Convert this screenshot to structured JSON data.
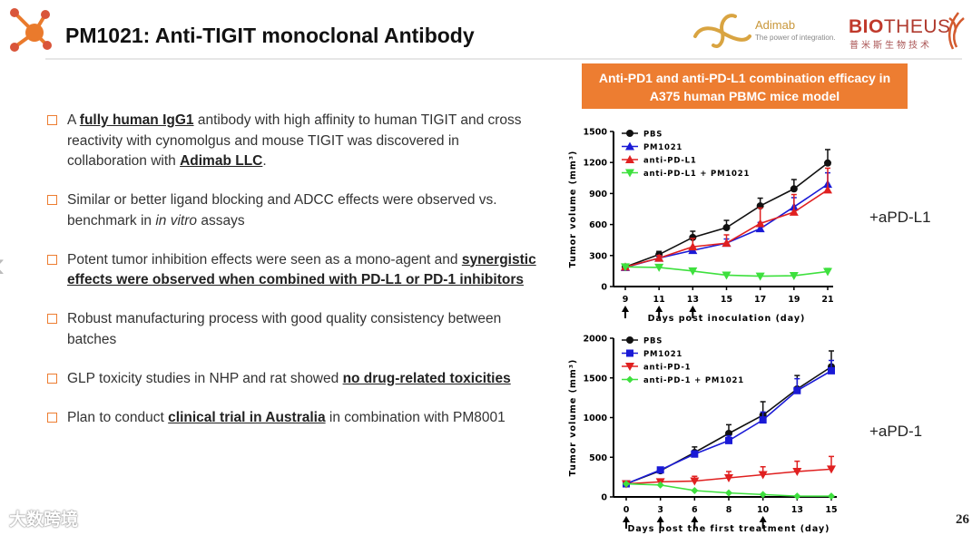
{
  "header": {
    "title": "PM1021: Anti-TIGIT monoclonal Antibody",
    "adimab_name": "Adimab",
    "adimab_tagline": "The power of integration.",
    "biotheus_name_a": "BIO",
    "biotheus_name_b": "THEUS",
    "biotheus_cn": "普米斯生物技术"
  },
  "banner": {
    "line1": "Anti-PD1 and anti-PD-L1 combination efficacy in",
    "line2": "A375 human PBMC mice model"
  },
  "bullets": [
    [
      {
        "t": "A "
      },
      {
        "t": "fully human IgG1",
        "b": 1
      },
      {
        "t": " antibody with high affinity to human TIGIT and cross reactivity with cynomolgus and mouse TIGIT was discovered in collaboration with "
      },
      {
        "t": "Adimab LLC",
        "b": 1
      },
      {
        "t": "."
      }
    ],
    [
      {
        "t": "Similar or better ligand blocking and ADCC effects were observed vs. benchmark in "
      },
      {
        "t": "in vitro",
        "i": 1
      },
      {
        "t": " assays"
      }
    ],
    [
      {
        "t": "Potent tumor inhibition effects were seen as a mono-agent and "
      },
      {
        "t": "synergistic effects were observed when combined with PD-L1 or PD-1 inhibitors",
        "b": 1
      }
    ],
    [
      {
        "t": "Robust manufacturing process with good quality consistency between batches"
      }
    ],
    [
      {
        "t": "GLP toxicity studies in NHP and rat showed "
      },
      {
        "t": "no drug-related toxicities",
        "b": 1
      }
    ],
    [
      {
        "t": "Plan to conduct "
      },
      {
        "t": "clinical trial in Australia",
        "b": 1
      },
      {
        "t": " in combination with PM8001"
      }
    ]
  ],
  "side_labels": {
    "top": "+aPD-L1",
    "bottom": "+aPD-1"
  },
  "page_number": "26",
  "watermark": "大数跨境",
  "chart_data": [
    {
      "type": "line",
      "title": "",
      "xlabel": "Days post inoculation (day)",
      "ylabel": "Tumor volume (mm³)",
      "categories": [
        "9",
        "11",
        "13",
        "15",
        "17",
        "19",
        "21"
      ],
      "ylim": [
        0,
        1500
      ],
      "yticks": [
        "0",
        "300",
        "600",
        "900",
        "1200",
        "1500"
      ],
      "dosing_days": [
        "9",
        "11",
        "13"
      ],
      "legend": "top-left",
      "series": [
        {
          "name": "PBS",
          "color": "#111111",
          "marker": "circle",
          "values": [
            190,
            310,
            475,
            570,
            780,
            945,
            1195
          ],
          "err": [
            15,
            30,
            60,
            70,
            75,
            90,
            130
          ]
        },
        {
          "name": "PM1021",
          "color": "#1a1ad6",
          "marker": "triangle-up",
          "values": [
            185,
            275,
            350,
            420,
            560,
            770,
            990
          ],
          "err": [
            10,
            20,
            30,
            40,
            60,
            90,
            110
          ]
        },
        {
          "name": "anti-PD-L1",
          "color": "#e02020",
          "marker": "triangle-up",
          "values": [
            190,
            275,
            385,
            420,
            610,
            720,
            935
          ],
          "err": [
            10,
            25,
            80,
            80,
            150,
            170,
            210
          ]
        },
        {
          "name": "anti-PD-L1 + PM1021",
          "color": "#3ee03e",
          "marker": "triangle-down",
          "values": [
            190,
            185,
            150,
            110,
            100,
            105,
            145
          ],
          "err": [
            10,
            10,
            10,
            10,
            10,
            10,
            30
          ]
        }
      ]
    },
    {
      "type": "line",
      "title": "",
      "xlabel": "Days post the first treatment (day)",
      "ylabel": "Tumor volume (mm³)",
      "categories": [
        "0",
        "3",
        "6",
        "8",
        "10",
        "13",
        "15"
      ],
      "ylim": [
        0,
        2000
      ],
      "yticks": [
        "0",
        "500",
        "1000",
        "1500",
        "2000"
      ],
      "dosing_days": [
        "0",
        "3",
        "6",
        "10"
      ],
      "legend": "top-left",
      "series": [
        {
          "name": "PBS",
          "color": "#111111",
          "marker": "circle",
          "values": [
            165,
            330,
            560,
            800,
            1030,
            1360,
            1640
          ],
          "err": [
            20,
            40,
            70,
            110,
            170,
            170,
            200
          ]
        },
        {
          "name": "PM1021",
          "color": "#1a1ad6",
          "marker": "square",
          "values": [
            165,
            340,
            540,
            710,
            970,
            1340,
            1590
          ],
          "err": [
            20,
            30,
            40,
            60,
            100,
            150,
            130
          ]
        },
        {
          "name": "anti-PD-1",
          "color": "#e02020",
          "marker": "triangle-down",
          "values": [
            165,
            190,
            200,
            240,
            280,
            320,
            350
          ],
          "err": [
            10,
            20,
            60,
            80,
            100,
            130,
            160
          ]
        },
        {
          "name": "anti-PD-1 + PM1021",
          "color": "#3ee03e",
          "marker": "diamond",
          "values": [
            165,
            150,
            80,
            50,
            30,
            10,
            10
          ],
          "err": [
            5,
            5,
            5,
            5,
            5,
            3,
            3
          ]
        }
      ]
    }
  ]
}
